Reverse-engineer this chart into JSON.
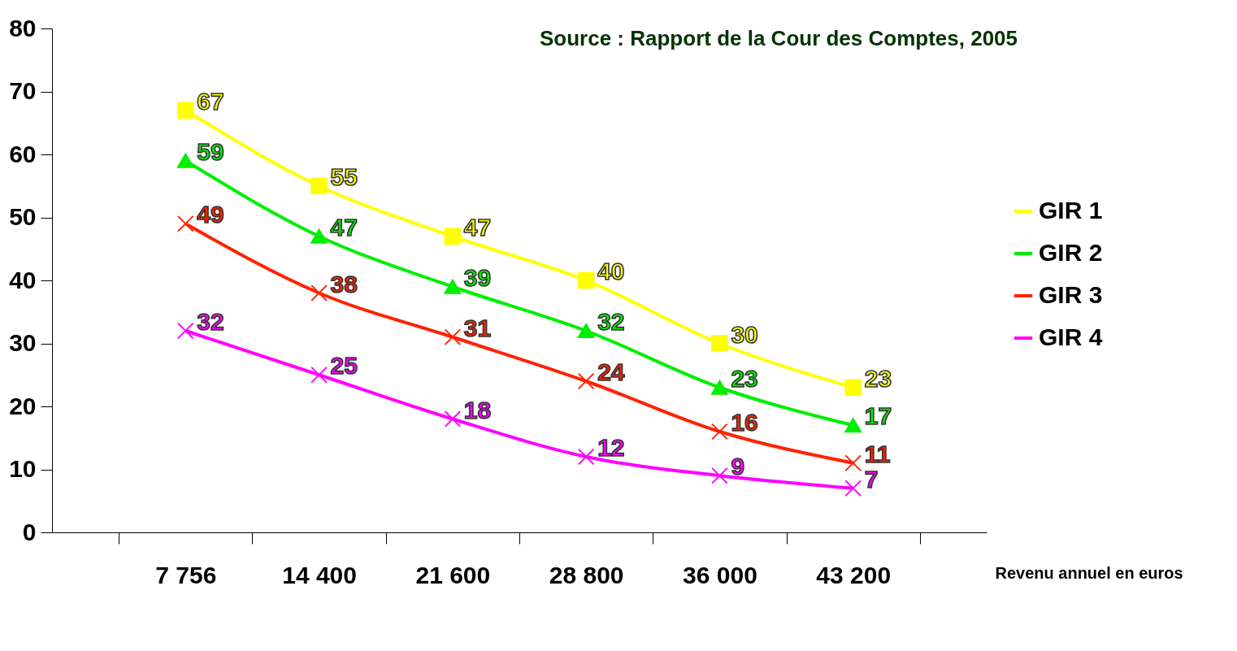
{
  "chart_data": {
    "type": "line",
    "xlabel": "Revenu annuel en euros",
    "annotations": [
      "Source : Rapport de la Cour des Comptes, 2005"
    ],
    "categories": [
      "7 756",
      "14 400",
      "21 600",
      "28 800",
      "36 000",
      "43 200"
    ],
    "series": [
      {
        "name": "GIR 1",
        "color": "#ffff00",
        "marker": "square",
        "values": [
          67,
          55,
          47,
          40,
          30,
          23
        ]
      },
      {
        "name": "GIR 2",
        "color": "#00ee00",
        "marker": "triangle",
        "values": [
          59,
          47,
          39,
          32,
          23,
          17
        ]
      },
      {
        "name": "GIR 3",
        "color": "#ff2200",
        "marker": "cross",
        "values": [
          49,
          38,
          31,
          24,
          16,
          11
        ]
      },
      {
        "name": "GIR 4",
        "color": "#ff00ff",
        "marker": "cross",
        "values": [
          32,
          25,
          18,
          12,
          9,
          7
        ]
      }
    ],
    "ylim": [
      0,
      80
    ],
    "yticks": [
      0,
      10,
      20,
      30,
      40,
      50,
      60,
      70,
      80
    ],
    "grid": false,
    "legend": "right",
    "data_labels": true
  }
}
